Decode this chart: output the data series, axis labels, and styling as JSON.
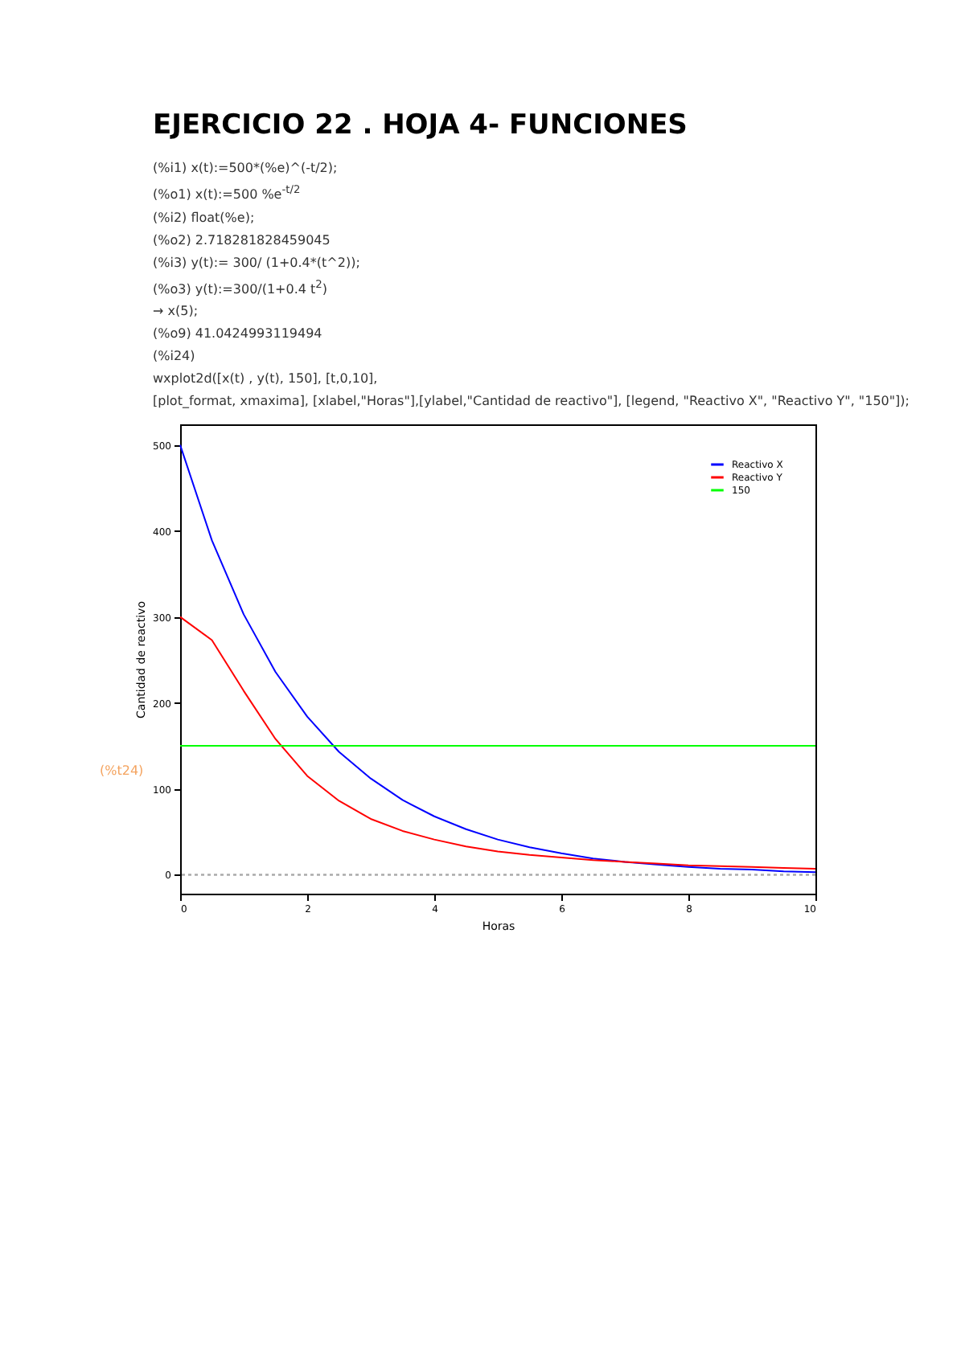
{
  "chart_data": {
    "type": "line",
    "title": "EJERCICIO 22 . HOJA 4- FUNCIONES",
    "annotations": [
      "(%i1) x(t):=500*(%e)^(-t/2);",
      "(%o1) x(t):=500 %e$^{-t/2}$",
      "(%i2) float(%e);",
      "(%o2) 2.718281828459045",
      "(%i3) y(t):= 300/ (1+0.4*(t^2));",
      "(%o3) y(t):=300/(1+0.4 t$^{2}$)",
      "→ x(5);",
      "(%o9) 41.0424993119494",
      "(%i24)",
      "wxplot2d([x(t) , y(t), 150], [t,0,10],",
      "[plot_format, xmaxima], [xlabel,\"Horas\"],[ylabel,\"Cantidad de reactivo\"], [legend, \"Reactivo X\", \"Reactivo Y\", \"150\"]);",
      "(%t24)"
    ],
    "xlabel": "Horas",
    "ylabel": "Cantidad de reactivo",
    "x": [
      0,
      0.5,
      1,
      1.5,
      2,
      2.5,
      3,
      3.5,
      4,
      4.5,
      5,
      5.5,
      6,
      6.5,
      7,
      7.5,
      8,
      8.5,
      9,
      9.5,
      10
    ],
    "series": [
      {
        "name": "Reactivo X",
        "color": "#0000ff",
        "values": [
          500,
          389,
          303,
          236,
          184,
          143,
          112,
          87,
          68,
          53,
          41,
          32,
          25,
          19,
          15,
          12,
          9,
          7,
          6,
          4,
          3
        ]
      },
      {
        "name": "Reactivo Y",
        "color": "#ff0000",
        "values": [
          300,
          273,
          214,
          158,
          115,
          86,
          65,
          51,
          41,
          33,
          27,
          23,
          20,
          17,
          15,
          13,
          11,
          10,
          9,
          8,
          7
        ]
      },
      {
        "name": "150",
        "color": "#00ff00",
        "x": [
          0,
          10
        ],
        "values": [
          150,
          150
        ]
      }
    ],
    "xlim": [
      0,
      10
    ],
    "ylim": [
      -22,
      524
    ],
    "xticks": [
      0,
      2,
      4,
      6,
      8,
      10
    ],
    "yticks": [
      0,
      100,
      200,
      300,
      400,
      500
    ],
    "ref_lines": [
      {
        "axis": "y",
        "value": 0,
        "color": "#aaaaaa",
        "line_style": "dotted"
      }
    ],
    "grid": false,
    "legend": "top right",
    "line_style": "solid",
    "marker": "none"
  }
}
